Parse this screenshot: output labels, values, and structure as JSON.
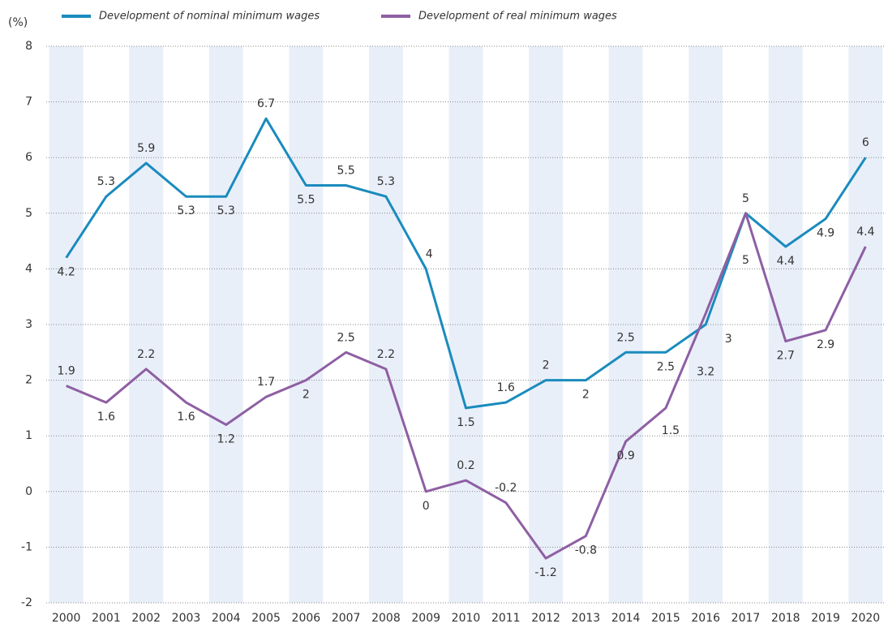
{
  "chart_data": {
    "type": "line",
    "y_label": "(%)",
    "categories": [
      "2000",
      "2001",
      "2002",
      "2003",
      "2004",
      "2005",
      "2006",
      "2007",
      "2008",
      "2009",
      "2010",
      "2011",
      "2012",
      "2013",
      "2014",
      "2015",
      "2016",
      "2017",
      "2018",
      "2019",
      "2020"
    ],
    "series": [
      {
        "name": "Development of nominal minimum wages",
        "color": "#1a8bbd",
        "values": [
          4.2,
          5.3,
          5.9,
          5.3,
          5.3,
          6.7,
          5.5,
          5.5,
          5.3,
          4,
          1.5,
          1.6,
          2,
          2,
          2.5,
          2.5,
          3,
          5,
          4.4,
          4.9,
          6
        ]
      },
      {
        "name": "Development of real minimum wages",
        "color": "#8e5fa3",
        "values": [
          1.9,
          1.6,
          2.2,
          1.6,
          1.2,
          1.7,
          2,
          2.5,
          2.2,
          0,
          0.2,
          -0.2,
          -1.2,
          -0.8,
          0.9,
          1.5,
          3.2,
          5,
          2.7,
          2.9,
          4.4
        ]
      }
    ],
    "ylim": [
      -2,
      8
    ],
    "yticks": [
      -2,
      -1,
      0,
      1,
      2,
      3,
      4,
      5,
      6,
      7,
      8
    ],
    "grid": true,
    "legend": "top"
  }
}
